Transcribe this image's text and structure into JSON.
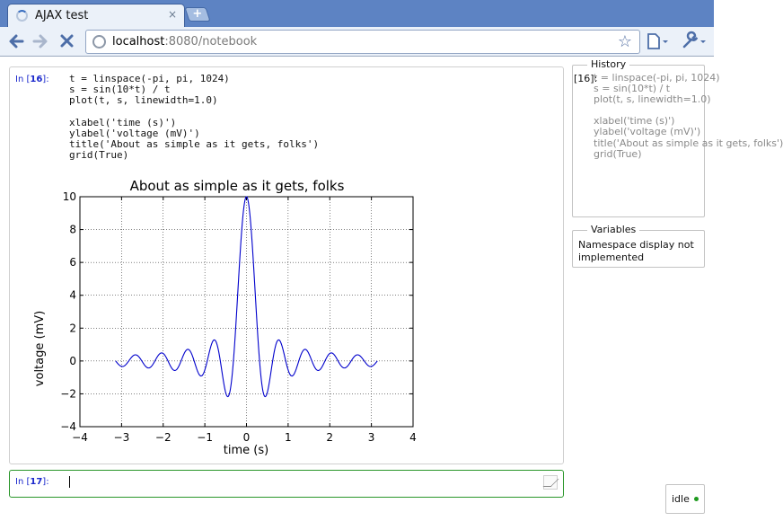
{
  "browser": {
    "tab_title": "AJAX test",
    "tab_close": "×",
    "newtab_label": "+",
    "url_host": "localhost",
    "url_rest": ":8080/notebook"
  },
  "cells": {
    "main": {
      "prompt_label": "In [",
      "prompt_number": "16",
      "prompt_close": "]:",
      "code": "t = linspace(-pi, pi, 1024)\ns = sin(10*t) / t\nplot(t, s, linewidth=1.0)\n\nxlabel('time (s)')\nylabel('voltage (mV)')\ntitle('About as simple as it gets, folks')\ngrid(True)"
    },
    "input": {
      "prompt_label": "In [",
      "prompt_number": "17",
      "prompt_close": "]:"
    }
  },
  "history": {
    "legend": "History",
    "number": "[16]:",
    "text": "t = linspace(-pi, pi, 1024)\ns = sin(10*t) / t\nplot(t, s, linewidth=1.0)\n\nxlabel('time (s)')\nylabel('voltage (mV)')\ntitle('About as simple as it gets, folks')\ngrid(True)"
  },
  "variables": {
    "legend": "Variables",
    "text": "Namespace display not implemented"
  },
  "status": {
    "text": "idle",
    "color": "#1e9a1e"
  },
  "chart_data": {
    "type": "line",
    "title": "About as simple as it gets, folks",
    "xlabel": "time (s)",
    "ylabel": "voltage (mV)",
    "xlim": [
      -4,
      4
    ],
    "ylim": [
      -4,
      10
    ],
    "xticks": [
      -4,
      -3,
      -2,
      -1,
      0,
      1,
      2,
      3,
      4
    ],
    "yticks": [
      -4,
      -2,
      0,
      2,
      4,
      6,
      8,
      10
    ],
    "xtick_labels": [
      "−4",
      "−3",
      "−2",
      "−1",
      "0",
      "1",
      "2",
      "3",
      "4"
    ],
    "ytick_labels": [
      "−4",
      "−2",
      "0",
      "2",
      "4",
      "6",
      "8",
      "10"
    ],
    "grid": true,
    "line_color": "#0000cc",
    "series": [
      {
        "function": "sin(10*t)/t",
        "x_range": [
          -3.14159,
          3.14159
        ],
        "n_points": 1024
      }
    ]
  }
}
